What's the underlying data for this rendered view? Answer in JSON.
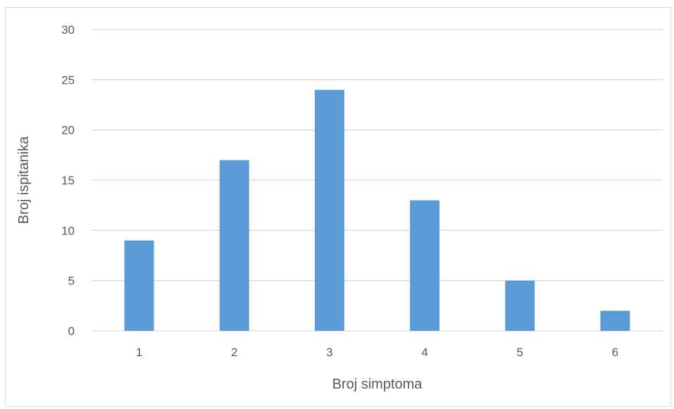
{
  "chart_data": {
    "type": "bar",
    "title": "",
    "xlabel": "Broj simptoma",
    "ylabel": "Broj ispitanika",
    "categories": [
      "1",
      "2",
      "3",
      "4",
      "5",
      "6"
    ],
    "values": [
      9,
      17,
      24,
      13,
      5,
      2
    ],
    "ylim": [
      0,
      30
    ],
    "yticks": [
      0,
      5,
      10,
      15,
      20,
      25,
      30
    ],
    "grid": true,
    "bar_color": "#5b9bd5",
    "grid_color": "#d9d9d9"
  }
}
